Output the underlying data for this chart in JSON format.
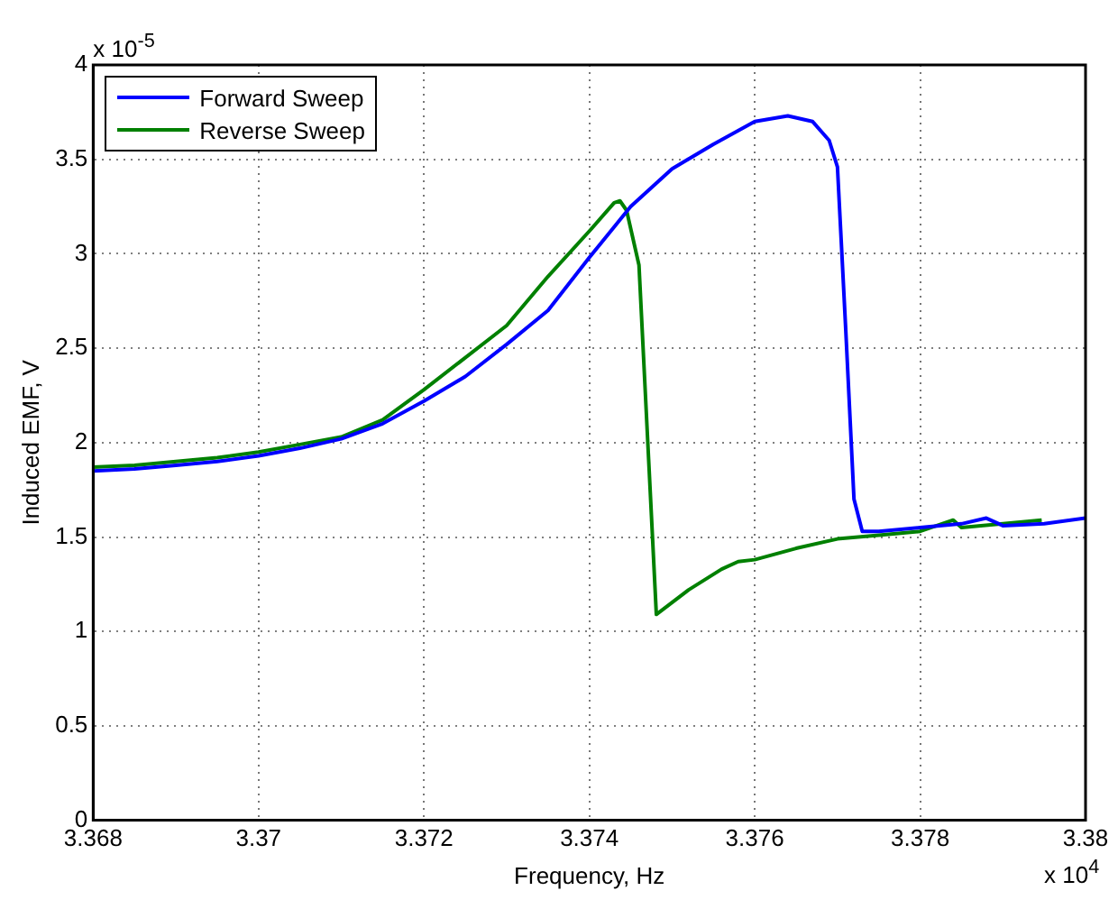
{
  "chart_data": {
    "type": "line",
    "xlabel": "Frequency, Hz",
    "ylabel": "Induced EMF, V",
    "annotations": [
      "x 10$^{-5}$",
      "x 10$^{4}$"
    ],
    "xlim": [
      3.368,
      3.38
    ],
    "xticks": [
      3.368,
      3.37,
      3.372,
      3.374,
      3.376,
      3.378,
      3.38
    ],
    "ylim": [
      0,
      4
    ],
    "yticks": [
      0,
      0.5,
      1,
      1.5,
      2,
      2.5,
      3,
      3.5,
      4
    ],
    "grid": true,
    "legend": "top left",
    "marker": "none",
    "line_style": "solid",
    "series": [
      {
        "name": "Forward Sweep",
        "color": "#0000ff",
        "x": [
          3.368,
          3.3685,
          3.369,
          3.3695,
          3.37,
          3.3705,
          3.371,
          3.3715,
          3.372,
          3.3725,
          3.373,
          3.3735,
          3.374,
          3.3745,
          3.375,
          3.3755,
          3.376,
          3.3764,
          3.3767,
          3.3769,
          3.377,
          3.3771,
          3.3772,
          3.3773,
          3.3775,
          3.378,
          3.3785,
          3.3788,
          3.379,
          3.3795,
          3.38
        ],
        "values": [
          1.85,
          1.86,
          1.88,
          1.9,
          1.93,
          1.97,
          2.02,
          2.1,
          2.22,
          2.35,
          2.52,
          2.7,
          2.98,
          3.25,
          3.45,
          3.58,
          3.7,
          3.73,
          3.7,
          3.6,
          3.46,
          2.6,
          1.7,
          1.53,
          1.53,
          1.55,
          1.57,
          1.6,
          1.56,
          1.57,
          1.6
        ]
      },
      {
        "name": "Reverse Sweep",
        "color": "#008000",
        "x": [
          3.368,
          3.3685,
          3.369,
          3.3695,
          3.37,
          3.3705,
          3.371,
          3.3715,
          3.372,
          3.3725,
          3.373,
          3.3735,
          3.374,
          3.3743,
          3.37437,
          3.37445,
          3.3746,
          3.37481,
          3.3752,
          3.3756,
          3.3758,
          3.376,
          3.3765,
          3.377,
          3.3775,
          3.378,
          3.3782,
          3.3784,
          3.3785,
          3.379,
          3.37947
        ],
        "values": [
          1.87,
          1.88,
          1.9,
          1.92,
          1.95,
          1.99,
          2.03,
          2.12,
          2.28,
          2.45,
          2.62,
          2.88,
          3.12,
          3.27,
          3.28,
          3.23,
          2.94,
          1.09,
          1.22,
          1.33,
          1.37,
          1.38,
          1.44,
          1.49,
          1.51,
          1.53,
          1.56,
          1.59,
          1.55,
          1.57,
          1.59
        ]
      }
    ]
  }
}
